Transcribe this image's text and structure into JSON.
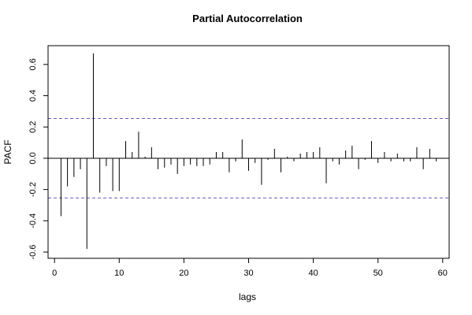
{
  "chart_data": {
    "type": "bar",
    "title": "Partial Autocorrelation",
    "xlabel": "lags",
    "ylabel": "PACF",
    "xlim": [
      -1,
      61
    ],
    "ylim": [
      -0.64,
      0.72
    ],
    "x_ticks": [
      0,
      10,
      20,
      30,
      40,
      50,
      60
    ],
    "x_tick_labels": [
      "0",
      "10",
      "20",
      "30",
      "40",
      "50",
      "60"
    ],
    "y_ticks": [
      -0.6,
      -0.4,
      -0.2,
      0.0,
      0.2,
      0.4,
      0.6
    ],
    "y_tick_labels": [
      "-0.6",
      "-0.4",
      "-0.2",
      "0.0",
      "0.2",
      "0.4",
      "0.6"
    ],
    "confidence_bound": 0.254,
    "confidence_color": "#6a5acd",
    "bar_color": "#000000",
    "grid": false,
    "lags": [
      1,
      2,
      3,
      4,
      5,
      6,
      7,
      8,
      9,
      10,
      11,
      12,
      13,
      14,
      15,
      16,
      17,
      18,
      19,
      20,
      21,
      22,
      23,
      24,
      25,
      26,
      27,
      28,
      29,
      30,
      31,
      32,
      33,
      34,
      35,
      36,
      37,
      38,
      39,
      40,
      41,
      42,
      43,
      44,
      45,
      46,
      47,
      48,
      49,
      50,
      51,
      52,
      53,
      54,
      55,
      56,
      57,
      58,
      59
    ],
    "values": [
      -0.37,
      -0.18,
      -0.12,
      -0.07,
      -0.58,
      0.67,
      -0.22,
      -0.05,
      -0.21,
      -0.21,
      0.11,
      0.04,
      0.17,
      0.01,
      0.07,
      -0.07,
      -0.06,
      -0.04,
      -0.1,
      -0.05,
      -0.04,
      -0.05,
      -0.05,
      -0.04,
      0.04,
      0.04,
      -0.09,
      -0.02,
      0.12,
      -0.08,
      -0.03,
      -0.17,
      -0.01,
      0.06,
      -0.09,
      0.01,
      -0.02,
      0.03,
      0.04,
      0.04,
      0.07,
      -0.16,
      -0.02,
      -0.04,
      0.05,
      0.08,
      -0.07,
      -0.01,
      0.11,
      -0.03,
      0.04,
      -0.02,
      0.03,
      -0.02,
      -0.02,
      0.07,
      -0.07,
      0.06,
      -0.02
    ]
  }
}
